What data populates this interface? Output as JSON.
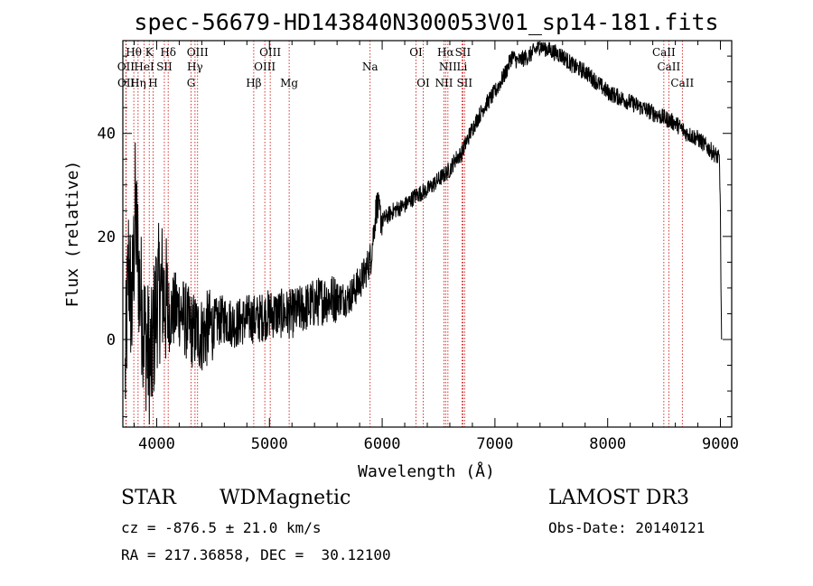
{
  "chart_data": {
    "type": "line",
    "title": "spec-56679-HD143840N300053V01_sp14-181.fits",
    "xlabel": "Wavelength (Å)",
    "ylabel": "Flux (relative)",
    "xlim": [
      3700,
      9100
    ],
    "ylim": [
      -17,
      58
    ],
    "xticks": [
      4000,
      5000,
      6000,
      7000,
      8000,
      9000
    ],
    "yticks": [
      0,
      20,
      40
    ],
    "series": [
      {
        "name": "spectrum",
        "x": [
          3720,
          3750,
          3780,
          3810,
          3850,
          3900,
          3950,
          4000,
          4050,
          4100,
          4200,
          4300,
          4400,
          4500,
          4600,
          4700,
          4800,
          4900,
          5000,
          5100,
          5200,
          5300,
          5400,
          5500,
          5600,
          5700,
          5800,
          5850,
          5900,
          5930,
          5950,
          6000,
          6100,
          6200,
          6300,
          6400,
          6500,
          6550,
          6600,
          6650,
          6700,
          6800,
          6900,
          7000,
          7050,
          7100,
          7150,
          7200,
          7300,
          7400,
          7500,
          7600,
          7700,
          7800,
          7900,
          8000,
          8100,
          8200,
          8300,
          8400,
          8500,
          8600,
          8700,
          8800,
          8900,
          8950,
          8990,
          9000,
          9005,
          9010
        ],
        "y": [
          -8,
          15,
          5,
          25,
          10,
          0,
          -5,
          8,
          10,
          5,
          6,
          2,
          1,
          3,
          4,
          3,
          4,
          4,
          5,
          5,
          5,
          6,
          7,
          8,
          8,
          8,
          11,
          13,
          16,
          22,
          26,
          23,
          25,
          26,
          28,
          29,
          31,
          32,
          33,
          35,
          36,
          41,
          45,
          48,
          50,
          52,
          55,
          54,
          55,
          57,
          56,
          55,
          53,
          52,
          50,
          48,
          47,
          46,
          45,
          44,
          43,
          42,
          40,
          39,
          37,
          36,
          35,
          25,
          10,
          0
        ],
        "noise_amplitude_short_wavelength": 14
      }
    ],
    "spectral_lines": [
      {
        "label": "Hθ",
        "wavelength": 3797,
        "row": 1
      },
      {
        "label": "OII",
        "wavelength": 3727,
        "row": 2
      },
      {
        "label": "OII",
        "wavelength": 3729,
        "row": 3
      },
      {
        "label": "Hη",
        "wavelength": 3835,
        "row": 3
      },
      {
        "label": "HeI",
        "wavelength": 3889,
        "row": 2
      },
      {
        "label": "K",
        "wavelength": 3934,
        "row": 1
      },
      {
        "label": "SII",
        "wavelength": 4068,
        "row": 2
      },
      {
        "label": "H",
        "wavelength": 3968,
        "row": 3
      },
      {
        "label": "Hδ",
        "wavelength": 4102,
        "row": 1
      },
      {
        "label": "OIII",
        "wavelength": 4363,
        "row": 1
      },
      {
        "label": "Hγ",
        "wavelength": 4340,
        "row": 2
      },
      {
        "label": "G",
        "wavelength": 4305,
        "row": 3
      },
      {
        "label": "Hβ",
        "wavelength": 4861,
        "row": 3
      },
      {
        "label": "OIII",
        "wavelength": 5007,
        "row": 1
      },
      {
        "label": "OIII",
        "wavelength": 4959,
        "row": 2
      },
      {
        "label": "Mg",
        "wavelength": 5175,
        "row": 3
      },
      {
        "label": "Na",
        "wavelength": 5893,
        "row": 2
      },
      {
        "label": "OI",
        "wavelength": 6300,
        "row": 1
      },
      {
        "label": "OI",
        "wavelength": 6364,
        "row": 3
      },
      {
        "label": "Hα",
        "wavelength": 6563,
        "row": 1
      },
      {
        "label": "SII",
        "wavelength": 6716,
        "row": 1
      },
      {
        "label": "NII",
        "wavelength": 6583,
        "row": 2
      },
      {
        "label": "Li",
        "wavelength": 6708,
        "row": 2
      },
      {
        "label": "NII",
        "wavelength": 6548,
        "row": 3
      },
      {
        "label": "SII",
        "wavelength": 6731,
        "row": 3
      },
      {
        "label": "CaII",
        "wavelength": 8498,
        "row": 1
      },
      {
        "label": "CaII",
        "wavelength": 8542,
        "row": 2
      },
      {
        "label": "CaII",
        "wavelength": 8662,
        "row": 3
      }
    ],
    "line_color": "#000000",
    "marker_color": "#cc0000"
  },
  "footer": {
    "object_class": "STAR",
    "object_subclass": "WDMagnetic",
    "survey": "LAMOST DR3",
    "redshift": "cz = -876.5 ± 21.0 km/s",
    "obs_date": "Obs-Date: 20140121",
    "coords": "RA = 217.36858, DEC =  30.12100"
  }
}
